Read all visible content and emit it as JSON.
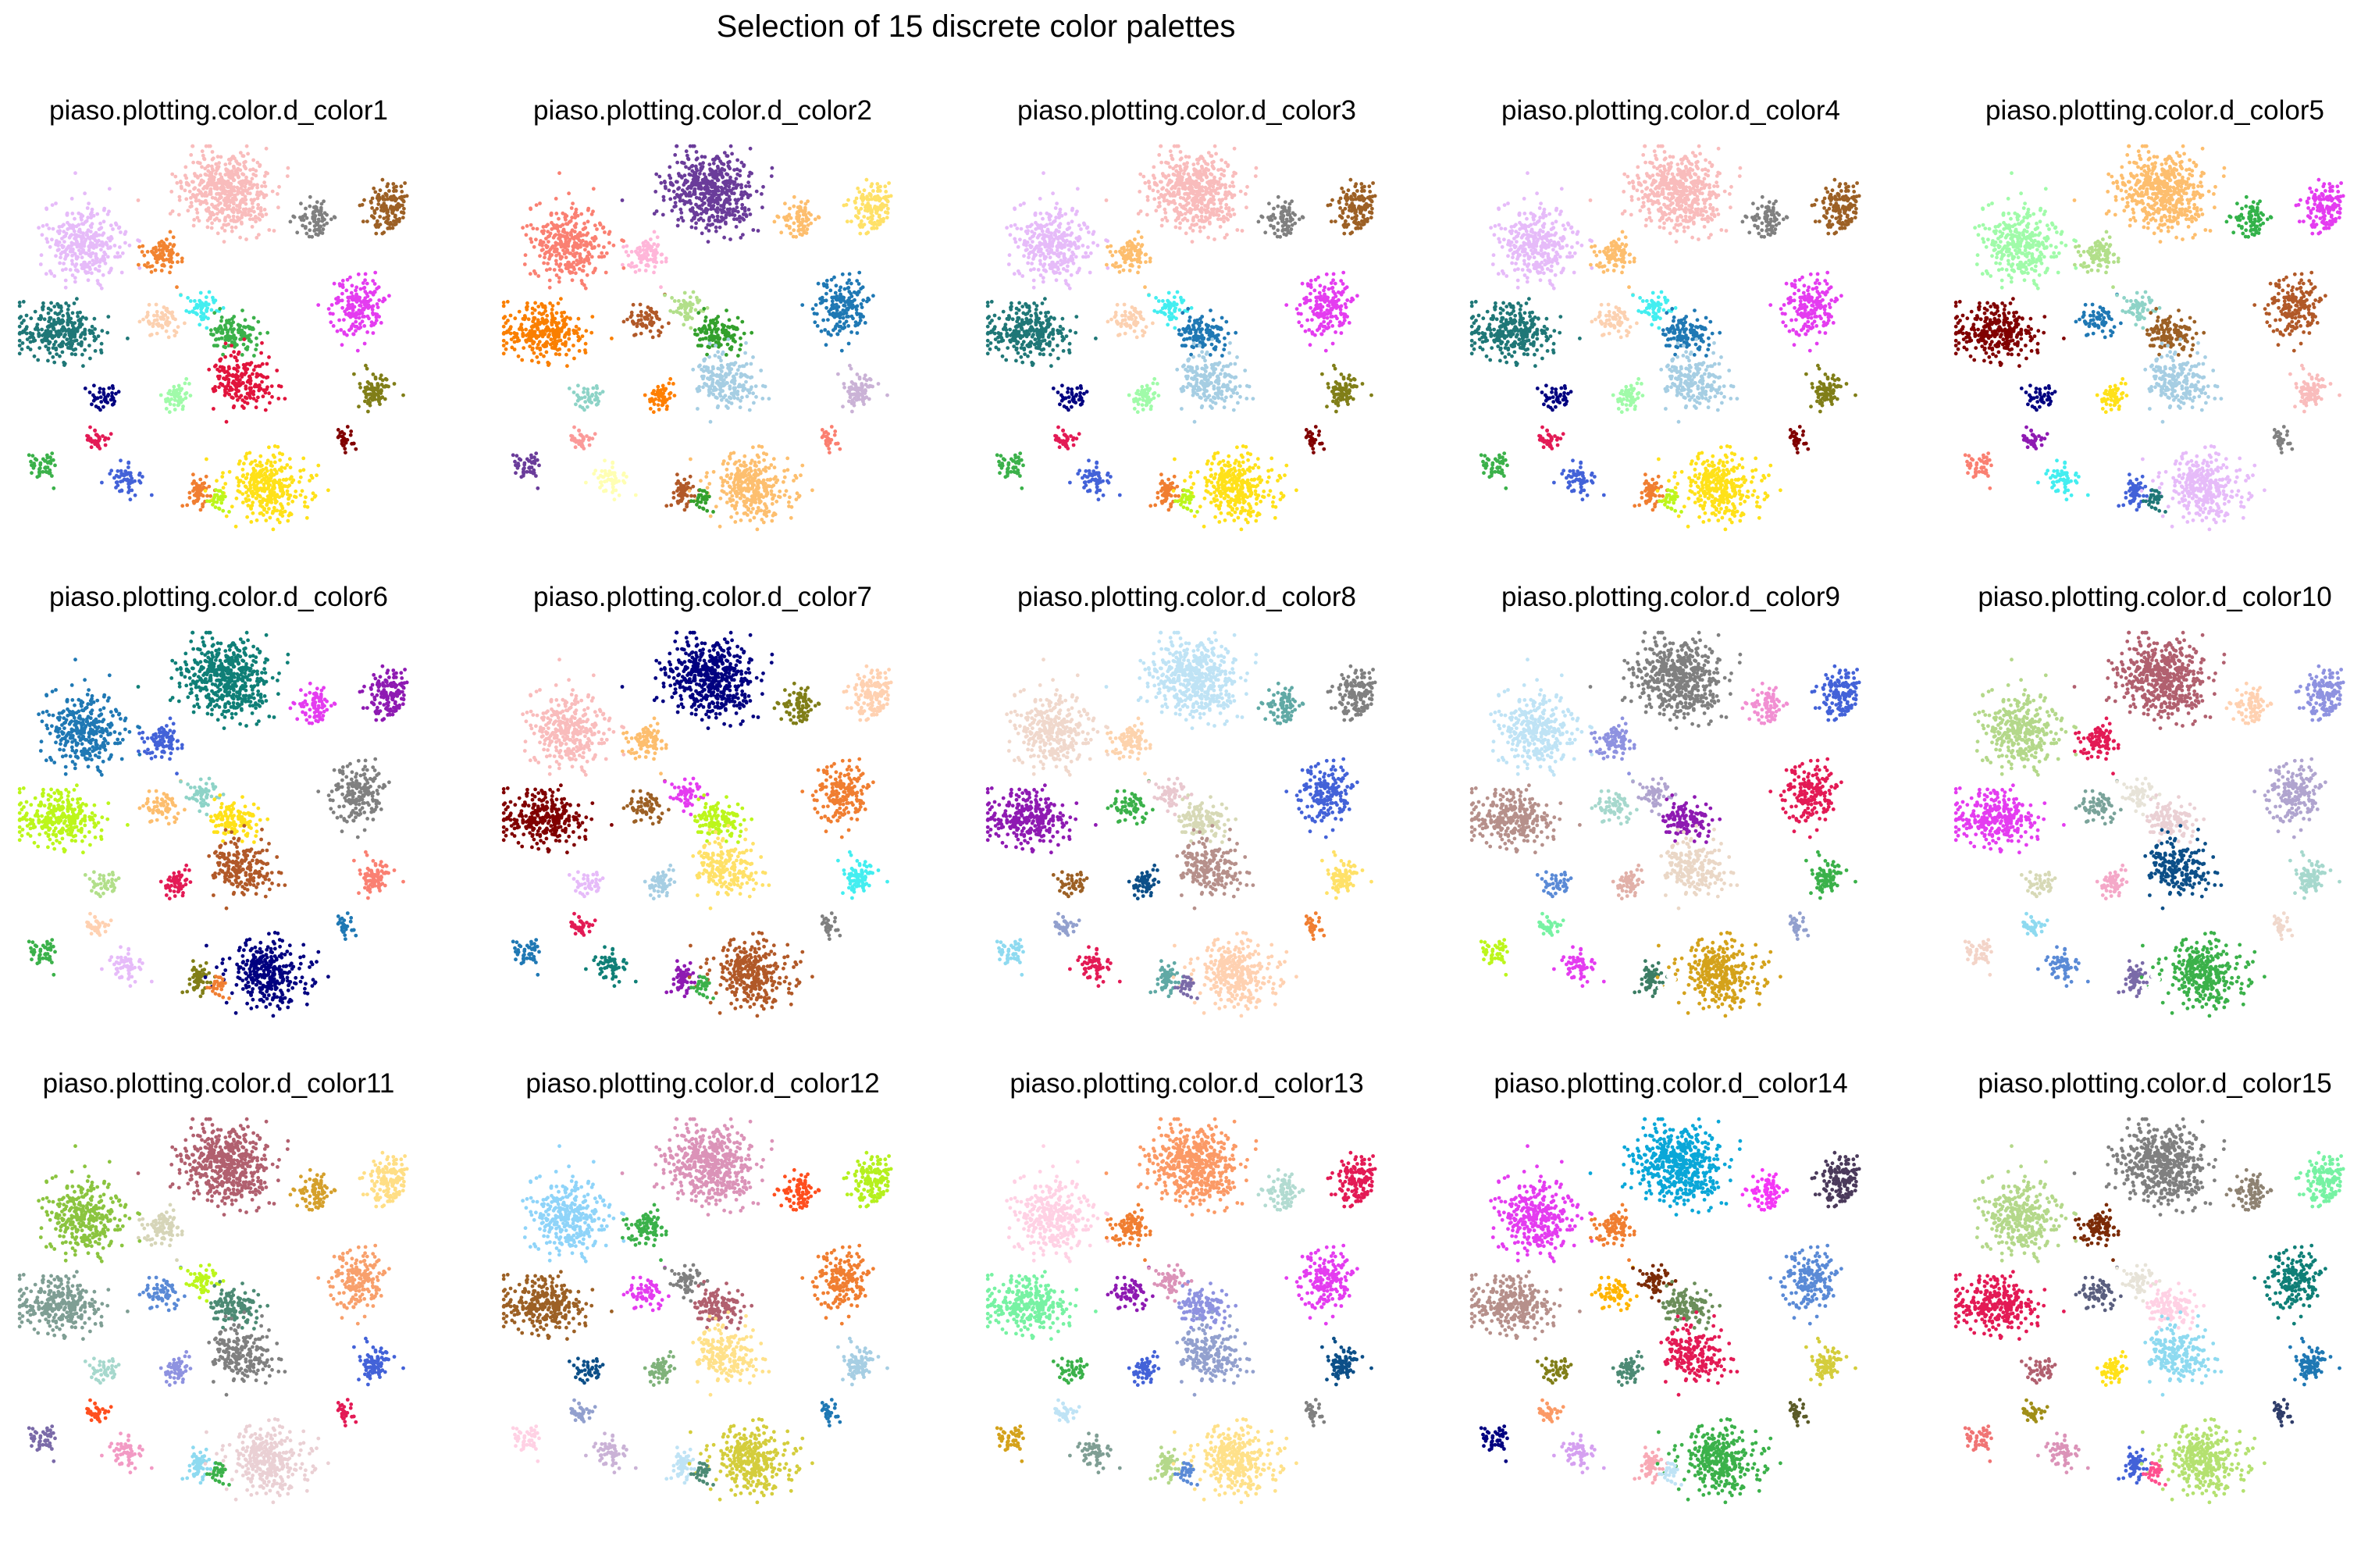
{
  "title": "Selection of 15 discrete color palettes",
  "chart_data": {
    "type": "scatter",
    "title": "Selection of 15 discrete color palettes",
    "grid": false,
    "axes_visible": false,
    "layout": "3 rows x 5 columns of UMAP-style scatter panels, identical point layout recolored by palette",
    "panels": [
      {
        "title": "piaso.plotting.color.d_color1",
        "palette": [
          "#f9bcbc",
          "#e6bbf9",
          "#f28431",
          "#808080",
          "#9c6025",
          "#1f7777",
          "#fcd1b1",
          "#43eef0",
          "#3bb14a",
          "#e43cf0",
          "#e1143c",
          "#807e18",
          "#000080",
          "#a0fba9",
          "#e31a55",
          "#3bb14a",
          "#4362d8",
          "#f07e31",
          "#ffe119",
          "#bcf61b",
          "#800000"
        ]
      },
      {
        "title": "piaso.plotting.color.d_color2",
        "palette": [
          "#6a3c9a",
          "#fa8072",
          "#ffb6d9",
          "#fdbe6e",
          "#ffe168",
          "#fa7f00",
          "#b15928",
          "#b2df8a",
          "#33a02c",
          "#1f78b4",
          "#a6cee3",
          "#cab2d6",
          "#8dd3c7",
          "#ff7f00",
          "#fb9a99",
          "#6a3c9a",
          "#ffffb3",
          "#b15928",
          "#fdbf6f",
          "#33a02c",
          "#fb7f70"
        ]
      },
      {
        "title": "piaso.plotting.color.d_color3",
        "palette": [
          "#f9bcbc",
          "#e6bbf9",
          "#fdbe6e",
          "#808080",
          "#9c6025",
          "#1f7777",
          "#fcd1b1",
          "#43eef0",
          "#1f78b4",
          "#e43cf0",
          "#a6cee3",
          "#807e18",
          "#000080",
          "#a0fba9",
          "#e31a55",
          "#3bb14a",
          "#4362d8",
          "#f07e31",
          "#ffe119",
          "#bcf61b",
          "#800000"
        ]
      },
      {
        "title": "piaso.plotting.color.d_color4",
        "palette": [
          "#f9bcbc",
          "#e6bbf9",
          "#fdbe6e",
          "#808080",
          "#9c6025",
          "#1f7777",
          "#fcd1b1",
          "#43eef0",
          "#1f78b4",
          "#e43cf0",
          "#a6cee3",
          "#807e18",
          "#000080",
          "#a0fba9",
          "#e31a55",
          "#3bb14a",
          "#4362d8",
          "#f07e31",
          "#ffe119",
          "#bcf61b",
          "#800000"
        ]
      },
      {
        "title": "piaso.plotting.color.d_color5",
        "palette": [
          "#fdbe6e",
          "#a0fba9",
          "#b2df8a",
          "#33b24a",
          "#e43cf0",
          "#800000",
          "#1f78b4",
          "#8ed3c7",
          "#9c6025",
          "#b15928",
          "#a6cee3",
          "#f9bcbc",
          "#000080",
          "#ffe119",
          "#8e1ab2",
          "#fa8072",
          "#43eef0",
          "#4362d8",
          "#e6bbf9",
          "#1f7777",
          "#808080"
        ]
      },
      {
        "title": "piaso.plotting.color.d_color6",
        "palette": [
          "#0f7f77",
          "#1f78b4",
          "#4362d8",
          "#e43cf0",
          "#8e1ab2",
          "#bcf61b",
          "#fdbe6e",
          "#8ed3c7",
          "#ffe119",
          "#808080",
          "#b15928",
          "#fa8072",
          "#b2df8a",
          "#e31a55",
          "#ffd1b1",
          "#3bb14a",
          "#e6bbf9",
          "#807e18",
          "#000080",
          "#f07e31",
          "#1f78b4"
        ]
      },
      {
        "title": "piaso.plotting.color.d_color7",
        "palette": [
          "#000080",
          "#f9bcbc",
          "#fdbe6e",
          "#807e18",
          "#ffd1b1",
          "#800000",
          "#9c6025",
          "#e43cf0",
          "#bcf61b",
          "#f07e31",
          "#ffe168",
          "#43eef0",
          "#e6bbf9",
          "#a6cee3",
          "#e31a55",
          "#1f78b4",
          "#0f7f77",
          "#8e1ab2",
          "#b15928",
          "#3bb14a",
          "#808080"
        ]
      },
      {
        "title": "piaso.plotting.color.d_color8",
        "palette": [
          "#bfe3f5",
          "#f0d8cc",
          "#fdd3ad",
          "#60a9a5",
          "#808080",
          "#8e1ab2",
          "#3bb14a",
          "#e9c8cf",
          "#d7d9b6",
          "#4362d8",
          "#b6908b",
          "#ffe168",
          "#9c6025",
          "#0c4f88",
          "#92a0ce",
          "#8edaf0",
          "#e31a55",
          "#60a9a5",
          "#ffd1b1",
          "#7a6aa8",
          "#f07e31"
        ]
      },
      {
        "title": "piaso.plotting.color.d_color9",
        "palette": [
          "#808080",
          "#bfe3f5",
          "#8e92e0",
          "#f18fd2",
          "#4362d8",
          "#b6908b",
          "#a6d8cd",
          "#b0a4cf",
          "#8e1ab2",
          "#e31a55",
          "#ead7c6",
          "#3bb14a",
          "#5a8ad6",
          "#e1b0a8",
          "#77f2a3",
          "#bcf61b",
          "#e43cf0",
          "#3c7d64",
          "#d4a21b",
          "#ffffff",
          "#92a0ce"
        ]
      },
      {
        "title": "piaso.plotting.color.d_color10",
        "palette": [
          "#b1606f",
          "#b4d88a",
          "#e31a55",
          "#ffd1b1",
          "#8e92e0",
          "#e43cf0",
          "#7aa39a",
          "#e7e3d8",
          "#ead0d4",
          "#b0a4cf",
          "#0c4f88",
          "#a6d8cd",
          "#d7d9b6",
          "#f4a8c8",
          "#8edaf0",
          "#f3d4c8",
          "#5a8ad6",
          "#7a6aa8",
          "#3bb14a",
          "#ffffff",
          "#f0d8cc"
        ]
      },
      {
        "title": "piaso.plotting.color.d_color11",
        "palette": [
          "#b1606f",
          "#8bc43f",
          "#d6d5b8",
          "#d5a02c",
          "#ffde85",
          "#7f9e94",
          "#5a8ad6",
          "#bcf61b",
          "#4c8a74",
          "#f8a06c",
          "#808080",
          "#4362d8",
          "#a6d8cd",
          "#8e92e0",
          "#ff4f1e",
          "#7a6aa8",
          "#f29ac4",
          "#8edaf0",
          "#ead0d4",
          "#3bb14a",
          "#e31a55"
        ]
      },
      {
        "title": "piaso.plotting.color.d_color12",
        "palette": [
          "#db93b8",
          "#8fd4f9",
          "#3bb14a",
          "#ff4f1e",
          "#b5f01e",
          "#9c6025",
          "#e43cf0",
          "#808080",
          "#b1606f",
          "#f07e31",
          "#ffe18a",
          "#a6cee3",
          "#0c4f88",
          "#7fb27a",
          "#92a0ce",
          "#ffd1e4",
          "#cab2d6",
          "#bfe3f5",
          "#d4cd3c",
          "#4c8a74",
          "#1f78b4"
        ]
      },
      {
        "title": "piaso.plotting.color.d_color13",
        "palette": [
          "#fb9a66",
          "#ffd1e4",
          "#f07e31",
          "#b2dbd1",
          "#e31a55",
          "#77f2a3",
          "#8e1ab2",
          "#db93b8",
          "#8e92e0",
          "#e43cf0",
          "#92a0ce",
          "#0c4f88",
          "#3bb14a",
          "#4362d8",
          "#bfe3f5",
          "#d4a21b",
          "#7f9e94",
          "#b4d88a",
          "#ffe18a",
          "#5a8ad6",
          "#808080"
        ]
      },
      {
        "title": "piaso.plotting.color.d_color14",
        "palette": [
          "#0aa7d8",
          "#e43cf0",
          "#f07e31",
          "#f437f6",
          "#4b3a5b",
          "#b6908b",
          "#ffb400",
          "#7b2b07",
          "#6b8e5a",
          "#5a8ad6",
          "#e31a55",
          "#d4cd3c",
          "#807e18",
          "#4c8a74",
          "#fb9a66",
          "#000080",
          "#d5a0f0",
          "#f8a9b5",
          "#3bb14a",
          "#bfe3f5",
          "#5a5a28"
        ]
      },
      {
        "title": "piaso.plotting.color.d_color15",
        "palette": [
          "#808080",
          "#b4d88a",
          "#7b2b07",
          "#8e8272",
          "#77f2a3",
          "#e31a55",
          "#5a5f7f",
          "#e7e3d8",
          "#ffd1e4",
          "#0f7f77",
          "#8edaf0",
          "#1f78b4",
          "#b1606f",
          "#ffe119",
          "#a08e18",
          "#f07474",
          "#db93b8",
          "#4362d8",
          "#b4e170",
          "#ff4f8e",
          "#2f3d6a"
        ]
      }
    ]
  }
}
